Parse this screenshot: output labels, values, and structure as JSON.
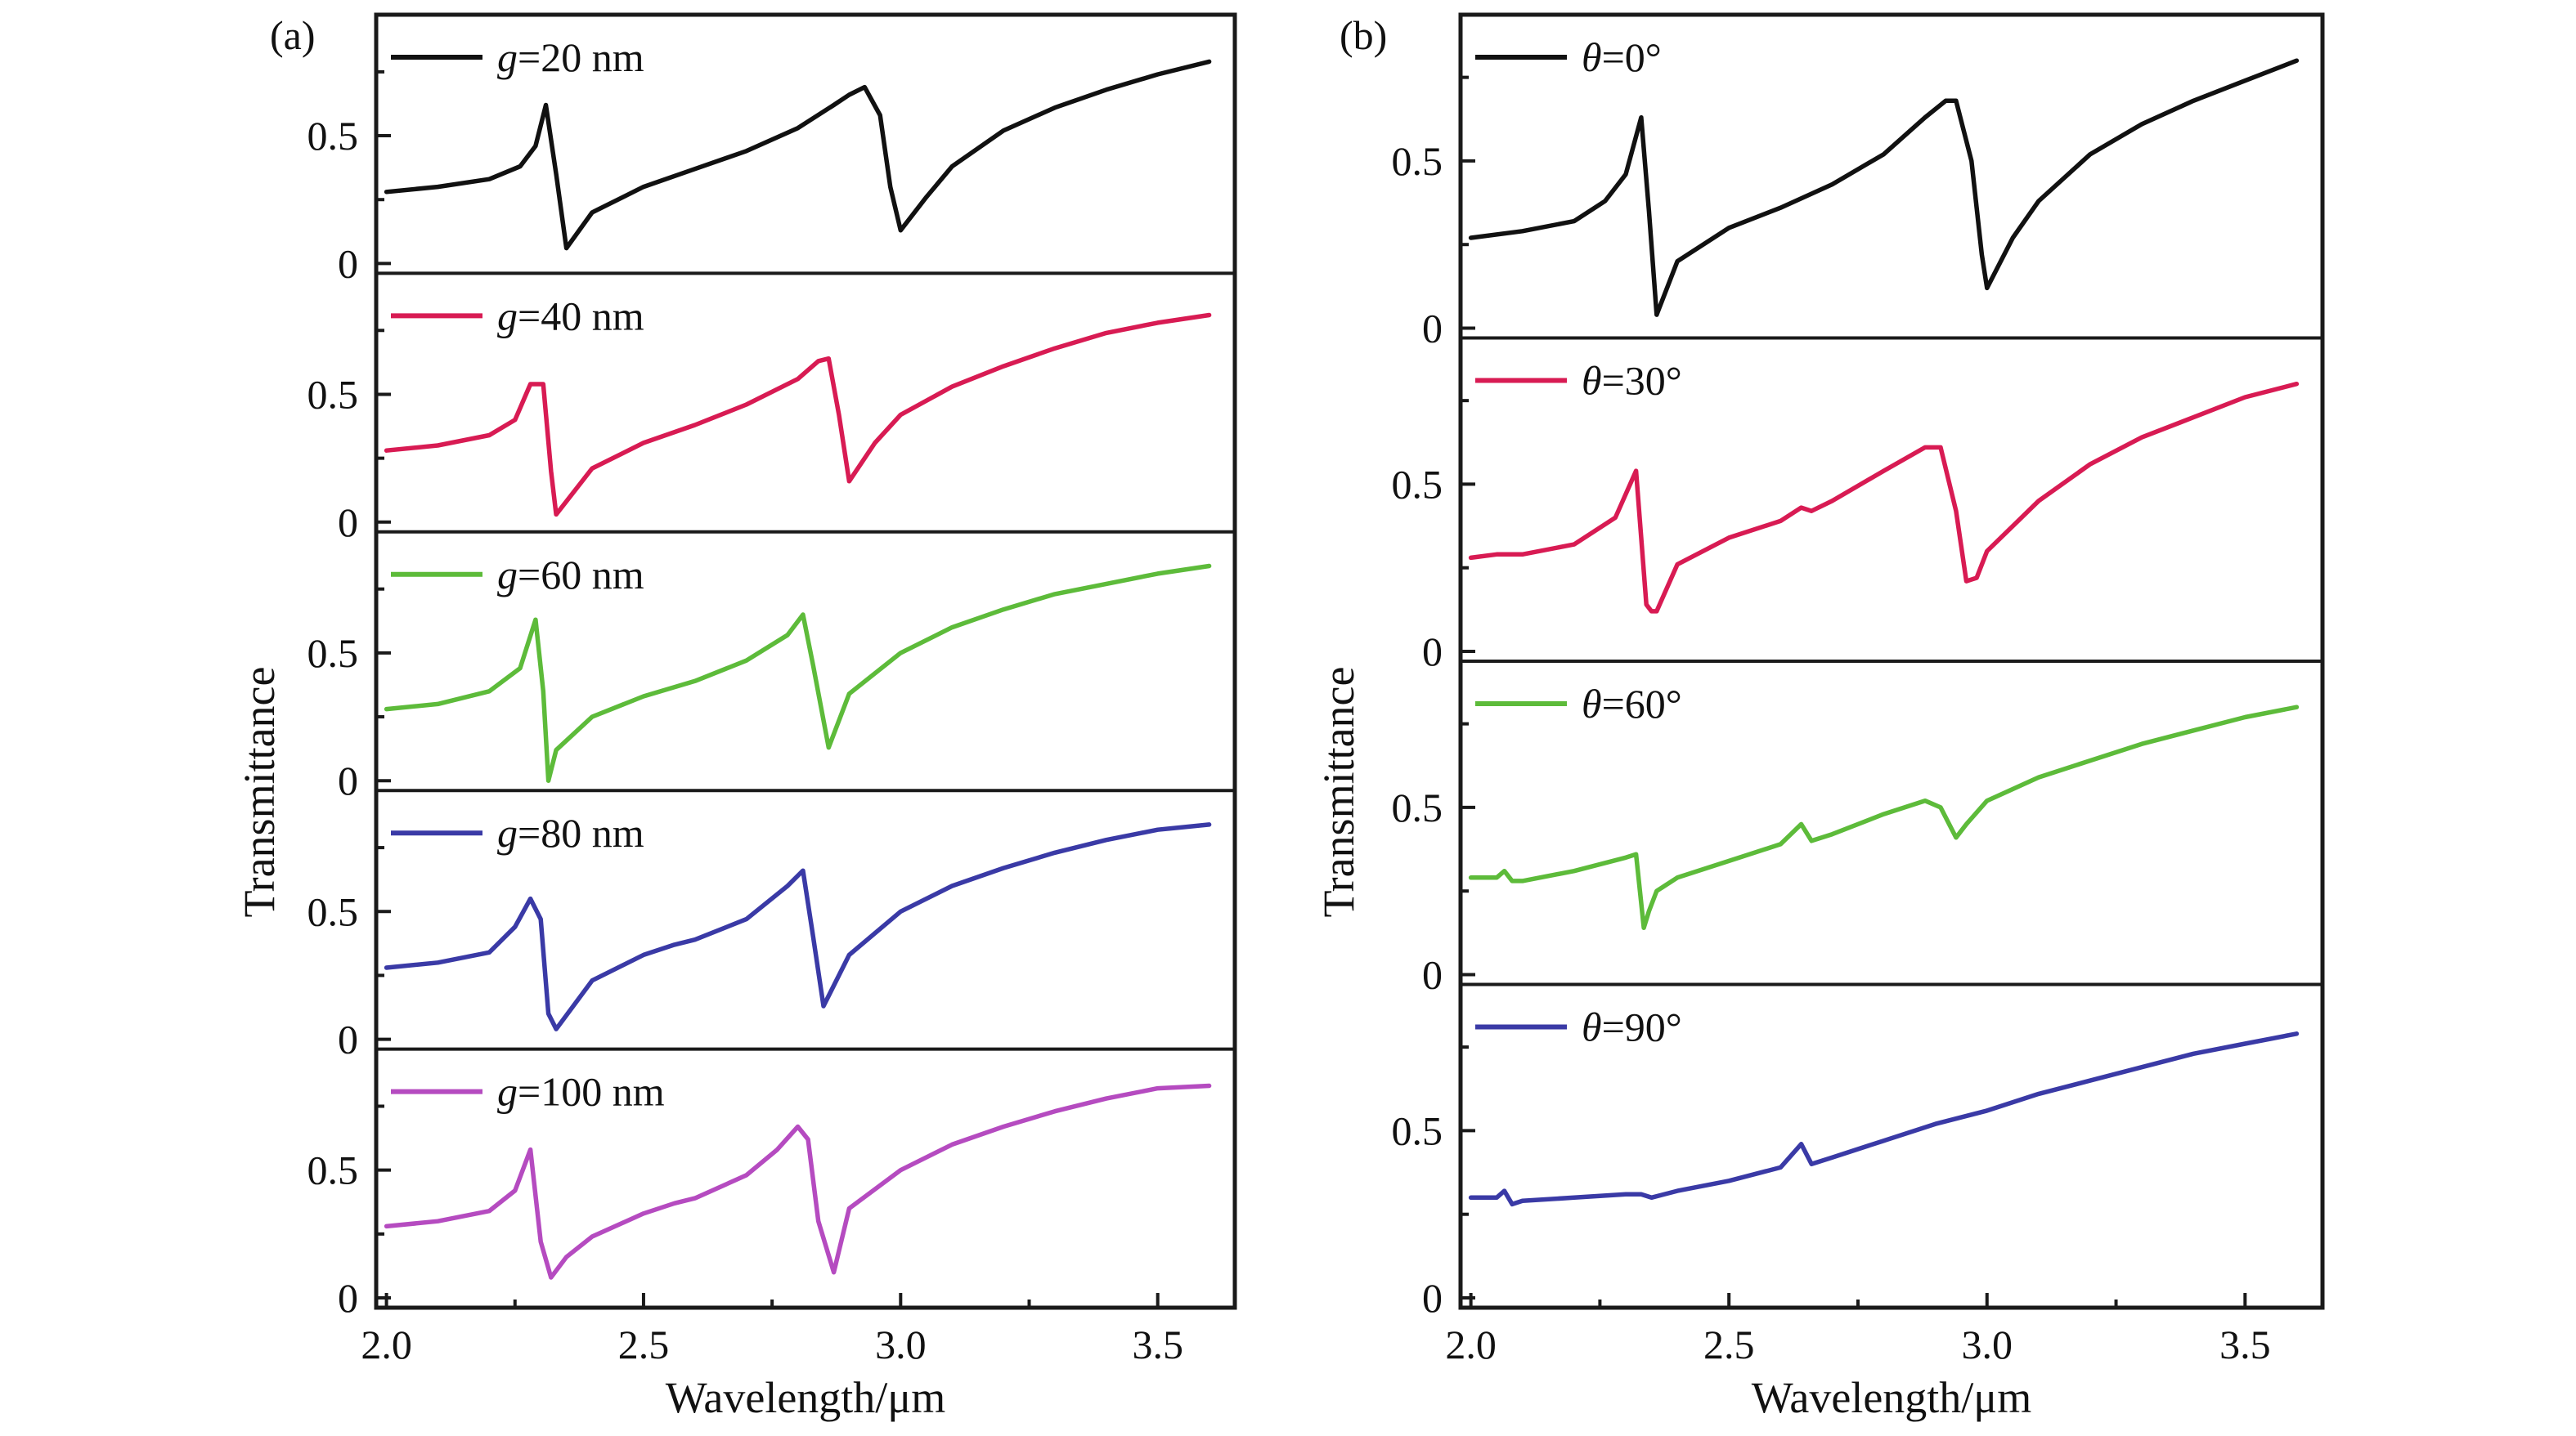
{
  "chart_data": [
    {
      "panel_label": "(a)",
      "type": "line",
      "xlabel": "Wavelength/μm",
      "ylabel": "Transmittance",
      "xlim": [
        1.98,
        3.65
      ],
      "ylim": [
        0,
        0.82
      ],
      "xticks": [
        "2.0",
        "2.5",
        "3.0",
        "3.5"
      ],
      "yticks": [
        "0",
        "0.5"
      ],
      "legend_position": "top-left",
      "subplots": [
        {
          "legend": {
            "param": "g",
            "value": "=20 nm"
          },
          "color": "#111111",
          "x": [
            2.0,
            2.1,
            2.2,
            2.26,
            2.29,
            2.31,
            2.33,
            2.35,
            2.4,
            2.5,
            2.6,
            2.7,
            2.8,
            2.87,
            2.9,
            2.93,
            2.96,
            2.98,
            3.0,
            3.05,
            3.1,
            3.2,
            3.3,
            3.4,
            3.5,
            3.6
          ],
          "y": [
            0.28,
            0.3,
            0.33,
            0.38,
            0.46,
            0.62,
            0.35,
            0.06,
            0.2,
            0.3,
            0.37,
            0.44,
            0.53,
            0.62,
            0.66,
            0.69,
            0.58,
            0.3,
            0.13,
            0.26,
            0.38,
            0.52,
            0.61,
            0.68,
            0.74,
            0.79
          ]
        },
        {
          "legend": {
            "param": "g",
            "value": "=40 nm"
          },
          "color": "#d81b53",
          "x": [
            2.0,
            2.1,
            2.2,
            2.25,
            2.28,
            2.305,
            2.32,
            2.33,
            2.4,
            2.5,
            2.6,
            2.7,
            2.8,
            2.84,
            2.86,
            2.88,
            2.9,
            2.95,
            3.0,
            3.1,
            3.2,
            3.3,
            3.4,
            3.5,
            3.6
          ],
          "y": [
            0.28,
            0.3,
            0.34,
            0.4,
            0.54,
            0.54,
            0.2,
            0.03,
            0.21,
            0.31,
            0.38,
            0.46,
            0.56,
            0.63,
            0.64,
            0.42,
            0.16,
            0.31,
            0.42,
            0.53,
            0.61,
            0.68,
            0.74,
            0.78,
            0.81
          ]
        },
        {
          "legend": {
            "param": "g",
            "value": "=60 nm"
          },
          "color": "#5dbb3a",
          "x": [
            2.0,
            2.1,
            2.2,
            2.26,
            2.29,
            2.305,
            2.315,
            2.33,
            2.4,
            2.5,
            2.6,
            2.7,
            2.78,
            2.81,
            2.83,
            2.86,
            2.9,
            3.0,
            3.1,
            3.2,
            3.3,
            3.4,
            3.5,
            3.6
          ],
          "y": [
            0.28,
            0.3,
            0.35,
            0.44,
            0.63,
            0.35,
            0.0,
            0.12,
            0.25,
            0.33,
            0.39,
            0.47,
            0.57,
            0.65,
            0.45,
            0.13,
            0.34,
            0.5,
            0.6,
            0.67,
            0.73,
            0.77,
            0.81,
            0.84
          ]
        },
        {
          "legend": {
            "param": "g",
            "value": "=80 nm"
          },
          "color": "#3a3aa6",
          "x": [
            2.0,
            2.1,
            2.2,
            2.25,
            2.28,
            2.3,
            2.315,
            2.33,
            2.4,
            2.5,
            2.56,
            2.6,
            2.7,
            2.78,
            2.81,
            2.83,
            2.85,
            2.9,
            3.0,
            3.1,
            3.2,
            3.3,
            3.4,
            3.5,
            3.6
          ],
          "y": [
            0.28,
            0.3,
            0.34,
            0.44,
            0.55,
            0.47,
            0.1,
            0.04,
            0.23,
            0.33,
            0.37,
            0.39,
            0.47,
            0.6,
            0.66,
            0.4,
            0.13,
            0.33,
            0.5,
            0.6,
            0.67,
            0.73,
            0.78,
            0.82,
            0.84
          ]
        },
        {
          "legend": {
            "param": "g",
            "value": "=100 nm"
          },
          "color": "#b54bc0",
          "x": [
            2.0,
            2.1,
            2.2,
            2.25,
            2.28,
            2.3,
            2.32,
            2.35,
            2.4,
            2.5,
            2.56,
            2.6,
            2.7,
            2.76,
            2.8,
            2.82,
            2.84,
            2.87,
            2.9,
            3.0,
            3.1,
            3.2,
            3.3,
            3.4,
            3.5,
            3.6
          ],
          "y": [
            0.28,
            0.3,
            0.34,
            0.42,
            0.58,
            0.22,
            0.08,
            0.16,
            0.24,
            0.33,
            0.37,
            0.39,
            0.48,
            0.58,
            0.67,
            0.62,
            0.3,
            0.1,
            0.35,
            0.5,
            0.6,
            0.67,
            0.73,
            0.78,
            0.82,
            0.83
          ]
        }
      ]
    },
    {
      "panel_label": "(b)",
      "type": "line",
      "xlabel": "Wavelength/μm",
      "ylabel": "Transmittance",
      "xlim": [
        1.98,
        3.65
      ],
      "ylim": [
        0,
        0.82
      ],
      "xticks": [
        "2.0",
        "2.5",
        "3.0",
        "3.5"
      ],
      "yticks": [
        "0",
        "0.5"
      ],
      "legend_position": "top-left",
      "subplots": [
        {
          "legend": {
            "param": "θ",
            "value": "=0°"
          },
          "color": "#111111",
          "x": [
            2.0,
            2.1,
            2.2,
            2.26,
            2.3,
            2.33,
            2.345,
            2.36,
            2.4,
            2.5,
            2.6,
            2.7,
            2.8,
            2.88,
            2.92,
            2.94,
            2.97,
            2.99,
            3.0,
            3.05,
            3.1,
            3.2,
            3.3,
            3.4,
            3.5,
            3.6
          ],
          "y": [
            0.27,
            0.29,
            0.32,
            0.38,
            0.46,
            0.63,
            0.35,
            0.04,
            0.2,
            0.3,
            0.36,
            0.43,
            0.52,
            0.63,
            0.68,
            0.68,
            0.5,
            0.22,
            0.12,
            0.27,
            0.38,
            0.52,
            0.61,
            0.68,
            0.74,
            0.8
          ]
        },
        {
          "legend": {
            "param": "θ",
            "value": "=30°"
          },
          "color": "#d81b53",
          "x": [
            2.0,
            2.05,
            2.1,
            2.2,
            2.28,
            2.32,
            2.34,
            2.35,
            2.36,
            2.4,
            2.5,
            2.6,
            2.64,
            2.66,
            2.7,
            2.8,
            2.88,
            2.91,
            2.94,
            2.96,
            2.98,
            3.0,
            3.1,
            3.2,
            3.3,
            3.4,
            3.5,
            3.6
          ],
          "y": [
            0.28,
            0.29,
            0.29,
            0.32,
            0.4,
            0.54,
            0.14,
            0.12,
            0.12,
            0.26,
            0.34,
            0.39,
            0.43,
            0.42,
            0.45,
            0.54,
            0.61,
            0.61,
            0.42,
            0.21,
            0.22,
            0.3,
            0.45,
            0.56,
            0.64,
            0.7,
            0.76,
            0.8
          ]
        },
        {
          "legend": {
            "param": "θ",
            "value": "=60°"
          },
          "color": "#5dbb3a",
          "x": [
            2.0,
            2.05,
            2.065,
            2.08,
            2.1,
            2.2,
            2.3,
            2.32,
            2.335,
            2.345,
            2.36,
            2.4,
            2.5,
            2.6,
            2.64,
            2.66,
            2.7,
            2.8,
            2.88,
            2.91,
            2.94,
            2.96,
            3.0,
            3.1,
            3.2,
            3.3,
            3.4,
            3.5,
            3.6
          ],
          "y": [
            0.29,
            0.29,
            0.31,
            0.28,
            0.28,
            0.31,
            0.35,
            0.36,
            0.14,
            0.19,
            0.25,
            0.29,
            0.34,
            0.39,
            0.45,
            0.4,
            0.42,
            0.48,
            0.52,
            0.5,
            0.41,
            0.45,
            0.52,
            0.59,
            0.64,
            0.69,
            0.73,
            0.77,
            0.8
          ]
        },
        {
          "legend": {
            "param": "θ",
            "value": "=90°"
          },
          "color": "#3a3aa6",
          "x": [
            2.0,
            2.05,
            2.065,
            2.08,
            2.1,
            2.2,
            2.3,
            2.33,
            2.35,
            2.4,
            2.5,
            2.6,
            2.64,
            2.66,
            2.7,
            2.8,
            2.9,
            3.0,
            3.1,
            3.2,
            3.3,
            3.4,
            3.5,
            3.6
          ],
          "y": [
            0.3,
            0.3,
            0.32,
            0.28,
            0.29,
            0.3,
            0.31,
            0.31,
            0.3,
            0.32,
            0.35,
            0.39,
            0.46,
            0.4,
            0.42,
            0.47,
            0.52,
            0.56,
            0.61,
            0.65,
            0.69,
            0.73,
            0.76,
            0.79
          ]
        }
      ]
    }
  ]
}
